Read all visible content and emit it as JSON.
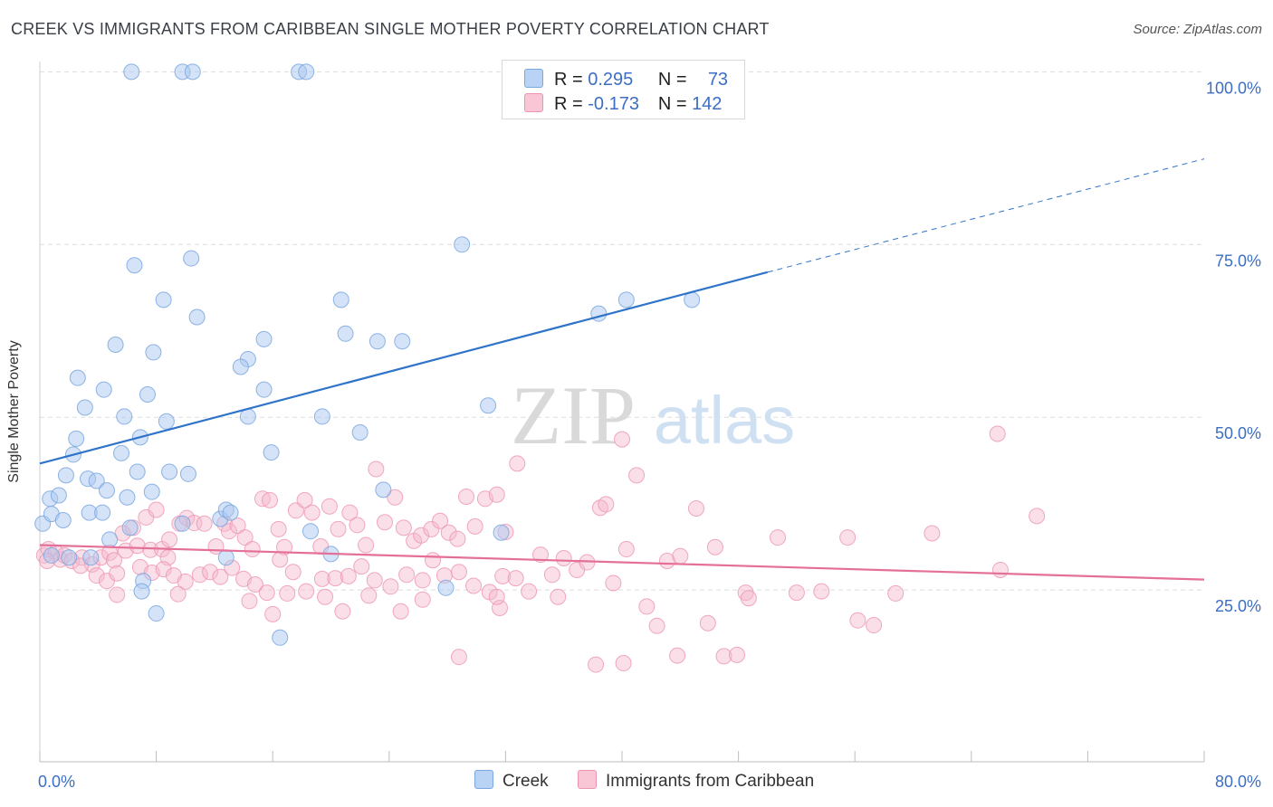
{
  "header": {
    "title": "CREEK VS IMMIGRANTS FROM CARIBBEAN SINGLE MOTHER POVERTY CORRELATION CHART",
    "source": "Source: ZipAtlas.com"
  },
  "watermark": {
    "zip": "ZIP",
    "atlas": "atlas"
  },
  "legend_top": {
    "rows": [
      {
        "r_label": "R =",
        "r_value": "0.295",
        "n_label": "N =",
        "n_value": "73"
      },
      {
        "r_label": "R =",
        "r_value": "-0.173",
        "n_label": "N =",
        "n_value": "142"
      }
    ]
  },
  "legend_bottom": {
    "creek": "Creek",
    "caribbean": "Immigrants from Caribbean"
  },
  "colors": {
    "creek_fill": "#a9c8f0",
    "creek_stroke": "#7aa7e0",
    "creek_line": "#2f74c9",
    "carib_fill": "#f5b7cb",
    "carib_stroke": "#ee93b2",
    "carib_line": "#e46f98",
    "tick_text": "#3c6ec3",
    "grid": "#dddddd"
  },
  "chart_data": {
    "type": "scatter",
    "title": "CREEK VS IMMIGRANTS FROM CARIBBEAN SINGLE MOTHER POVERTY CORRELATION CHART",
    "xlabel": "",
    "ylabel": "Single Mother Poverty",
    "xlim": [
      0,
      80
    ],
    "ylim": [
      0,
      105
    ],
    "x_tick_labels": [
      "0.0%",
      "80.0%"
    ],
    "y_ticks": [
      25,
      50,
      75,
      100
    ],
    "y_tick_labels": [
      "25.0%",
      "50.0%",
      "75.0%",
      "100.0%"
    ],
    "grid": true,
    "legend_placement": "top-center",
    "series": [
      {
        "name": "Creek",
        "r": 0.295,
        "n": 73,
        "trend": {
          "x1": 0,
          "y1": 43.3,
          "x2": 50,
          "y2": 71.0,
          "dash_to_x": 80,
          "dash_to_y": 87.4
        },
        "points": [
          [
            6.3,
            100
          ],
          [
            9.8,
            100
          ],
          [
            10.5,
            100
          ],
          [
            17.8,
            100
          ],
          [
            18.3,
            100
          ],
          [
            29.0,
            75
          ],
          [
            10.4,
            73
          ],
          [
            6.5,
            72
          ],
          [
            8.5,
            67
          ],
          [
            20.7,
            67
          ],
          [
            38.4,
            65
          ],
          [
            40.3,
            67
          ],
          [
            44.8,
            67
          ],
          [
            10.8,
            64.5
          ],
          [
            5.2,
            60.5
          ],
          [
            7.8,
            59.4
          ],
          [
            15.4,
            61.3
          ],
          [
            14.3,
            58.4
          ],
          [
            13.8,
            57.3
          ],
          [
            21.0,
            62.1
          ],
          [
            23.2,
            61.0
          ],
          [
            24.9,
            61.0
          ],
          [
            2.6,
            55.7
          ],
          [
            4.4,
            54.0
          ],
          [
            7.4,
            53.3
          ],
          [
            15.4,
            54.0
          ],
          [
            3.1,
            51.4
          ],
          [
            5.8,
            50.1
          ],
          [
            8.7,
            49.4
          ],
          [
            14.3,
            50.1
          ],
          [
            19.4,
            50.1
          ],
          [
            30.8,
            51.7
          ],
          [
            2.5,
            46.9
          ],
          [
            6.9,
            47.1
          ],
          [
            22.0,
            47.8
          ],
          [
            2.3,
            44.6
          ],
          [
            5.6,
            44.8
          ],
          [
            15.9,
            44.9
          ],
          [
            1.8,
            41.6
          ],
          [
            3.3,
            41.1
          ],
          [
            6.7,
            42.1
          ],
          [
            8.9,
            42.1
          ],
          [
            10.2,
            41.8
          ],
          [
            3.9,
            40.8
          ],
          [
            0.7,
            38.2
          ],
          [
            1.3,
            38.7
          ],
          [
            4.6,
            39.4
          ],
          [
            6.0,
            38.4
          ],
          [
            7.7,
            39.2
          ],
          [
            23.6,
            39.5
          ],
          [
            0.2,
            34.6
          ],
          [
            0.8,
            36.0
          ],
          [
            1.6,
            35.1
          ],
          [
            3.4,
            36.2
          ],
          [
            4.3,
            36.2
          ],
          [
            9.8,
            34.6
          ],
          [
            12.4,
            35.3
          ],
          [
            12.8,
            36.6
          ],
          [
            13.1,
            36.2
          ],
          [
            18.6,
            33.5
          ],
          [
            31.7,
            33.3
          ],
          [
            4.8,
            32.3
          ],
          [
            2.0,
            29.7
          ],
          [
            3.5,
            29.7
          ],
          [
            0.8,
            30.0
          ],
          [
            12.8,
            29.7
          ],
          [
            7.1,
            26.3
          ],
          [
            7.0,
            24.8
          ],
          [
            8.0,
            21.6
          ],
          [
            27.9,
            25.3
          ],
          [
            16.5,
            18.1
          ],
          [
            20.0,
            30.2
          ],
          [
            6.2,
            34.0
          ]
        ]
      },
      {
        "name": "Immigrants from Caribbean",
        "r": -0.173,
        "n": 142,
        "trend": {
          "x1": 0,
          "y1": 31.5,
          "x2": 80,
          "y2": 26.5
        },
        "points": [
          [
            0.3,
            30.0
          ],
          [
            0.6,
            30.9
          ],
          [
            1.1,
            30.4
          ],
          [
            1.4,
            29.4
          ],
          [
            1.7,
            30.0
          ],
          [
            2.2,
            29.2
          ],
          [
            2.9,
            29.7
          ],
          [
            3.6,
            28.7
          ],
          [
            4.2,
            29.7
          ],
          [
            4.8,
            30.4
          ],
          [
            5.1,
            29.3
          ],
          [
            5.9,
            30.7
          ],
          [
            6.7,
            31.4
          ],
          [
            7.6,
            30.8
          ],
          [
            8.4,
            30.9
          ],
          [
            8.8,
            29.7
          ],
          [
            5.7,
            33.2
          ],
          [
            6.4,
            34.0
          ],
          [
            7.3,
            35.5
          ],
          [
            8.0,
            36.6
          ],
          [
            8.9,
            32.3
          ],
          [
            9.6,
            34.6
          ],
          [
            10.1,
            35.4
          ],
          [
            10.6,
            34.7
          ],
          [
            11.3,
            34.6
          ],
          [
            12.1,
            31.3
          ],
          [
            12.7,
            34.6
          ],
          [
            13.0,
            33.5
          ],
          [
            13.6,
            34.3
          ],
          [
            14.1,
            32.6
          ],
          [
            14.6,
            30.9
          ],
          [
            15.3,
            38.2
          ],
          [
            15.8,
            38.0
          ],
          [
            16.4,
            33.8
          ],
          [
            16.8,
            31.2
          ],
          [
            17.6,
            36.5
          ],
          [
            18.2,
            38.0
          ],
          [
            18.7,
            36.2
          ],
          [
            19.3,
            31.3
          ],
          [
            19.9,
            37.1
          ],
          [
            20.5,
            33.8
          ],
          [
            21.3,
            36.2
          ],
          [
            21.8,
            34.4
          ],
          [
            22.4,
            31.5
          ],
          [
            23.1,
            42.5
          ],
          [
            23.7,
            34.8
          ],
          [
            24.4,
            38.4
          ],
          [
            25.0,
            34.0
          ],
          [
            25.7,
            32.1
          ],
          [
            26.2,
            32.9
          ],
          [
            26.9,
            33.8
          ],
          [
            27.5,
            35.0
          ],
          [
            28.1,
            33.3
          ],
          [
            28.7,
            32.4
          ],
          [
            29.3,
            38.5
          ],
          [
            29.9,
            34.2
          ],
          [
            30.6,
            38.2
          ],
          [
            31.4,
            38.8
          ],
          [
            32.0,
            33.4
          ],
          [
            32.8,
            43.3
          ],
          [
            2.8,
            28.5
          ],
          [
            3.9,
            27.1
          ],
          [
            4.6,
            26.3
          ],
          [
            5.3,
            27.4
          ],
          [
            6.9,
            28.3
          ],
          [
            7.7,
            27.5
          ],
          [
            8.5,
            28.0
          ],
          [
            9.2,
            27.1
          ],
          [
            10.0,
            26.2
          ],
          [
            11.0,
            27.2
          ],
          [
            11.7,
            27.6
          ],
          [
            12.4,
            26.9
          ],
          [
            13.2,
            28.2
          ],
          [
            14.0,
            26.6
          ],
          [
            14.8,
            25.8
          ],
          [
            15.6,
            24.6
          ],
          [
            16.5,
            29.4
          ],
          [
            17.4,
            27.6
          ],
          [
            18.3,
            24.8
          ],
          [
            19.4,
            26.6
          ],
          [
            20.3,
            26.7
          ],
          [
            21.2,
            27.0
          ],
          [
            22.1,
            28.4
          ],
          [
            23.0,
            26.4
          ],
          [
            24.1,
            25.5
          ],
          [
            25.2,
            27.2
          ],
          [
            26.3,
            26.4
          ],
          [
            27.0,
            29.3
          ],
          [
            27.8,
            27.1
          ],
          [
            28.8,
            27.6
          ],
          [
            29.8,
            25.6
          ],
          [
            30.9,
            24.7
          ],
          [
            31.8,
            27.0
          ],
          [
            32.7,
            26.7
          ],
          [
            33.6,
            24.8
          ],
          [
            34.4,
            30.1
          ],
          [
            35.2,
            27.2
          ],
          [
            36.0,
            29.6
          ],
          [
            36.9,
            27.9
          ],
          [
            37.6,
            29.0
          ],
          [
            38.5,
            36.9
          ],
          [
            38.9,
            37.4
          ],
          [
            39.4,
            26.0
          ],
          [
            40.3,
            30.9
          ],
          [
            41.0,
            41.6
          ],
          [
            41.7,
            22.6
          ],
          [
            42.4,
            19.8
          ],
          [
            43.1,
            29.2
          ],
          [
            44.0,
            29.9
          ],
          [
            45.1,
            36.8
          ],
          [
            45.9,
            20.2
          ],
          [
            46.4,
            31.2
          ],
          [
            47.0,
            15.4
          ],
          [
            47.9,
            15.6
          ],
          [
            48.5,
            24.6
          ],
          [
            48.7,
            23.8
          ],
          [
            50.7,
            32.6
          ],
          [
            52.0,
            24.6
          ],
          [
            53.7,
            24.8
          ],
          [
            55.5,
            32.6
          ],
          [
            56.2,
            20.6
          ],
          [
            57.3,
            19.9
          ],
          [
            58.8,
            24.5
          ],
          [
            61.3,
            33.2
          ],
          [
            65.8,
            47.6
          ],
          [
            66.0,
            27.9
          ],
          [
            68.5,
            35.7
          ],
          [
            16.0,
            21.5
          ],
          [
            20.8,
            21.9
          ],
          [
            24.8,
            21.9
          ],
          [
            26.3,
            23.6
          ],
          [
            28.8,
            15.3
          ],
          [
            31.6,
            22.4
          ],
          [
            38.2,
            14.2
          ],
          [
            40.1,
            14.4
          ],
          [
            43.8,
            15.5
          ],
          [
            40.0,
            46.8
          ],
          [
            5.3,
            24.3
          ],
          [
            9.5,
            24.4
          ],
          [
            14.4,
            23.4
          ],
          [
            17.0,
            24.5
          ],
          [
            19.6,
            24.0
          ],
          [
            22.6,
            24.2
          ],
          [
            31.4,
            24.0
          ],
          [
            35.6,
            24.0
          ],
          [
            0.5,
            29.2
          ]
        ]
      }
    ]
  }
}
